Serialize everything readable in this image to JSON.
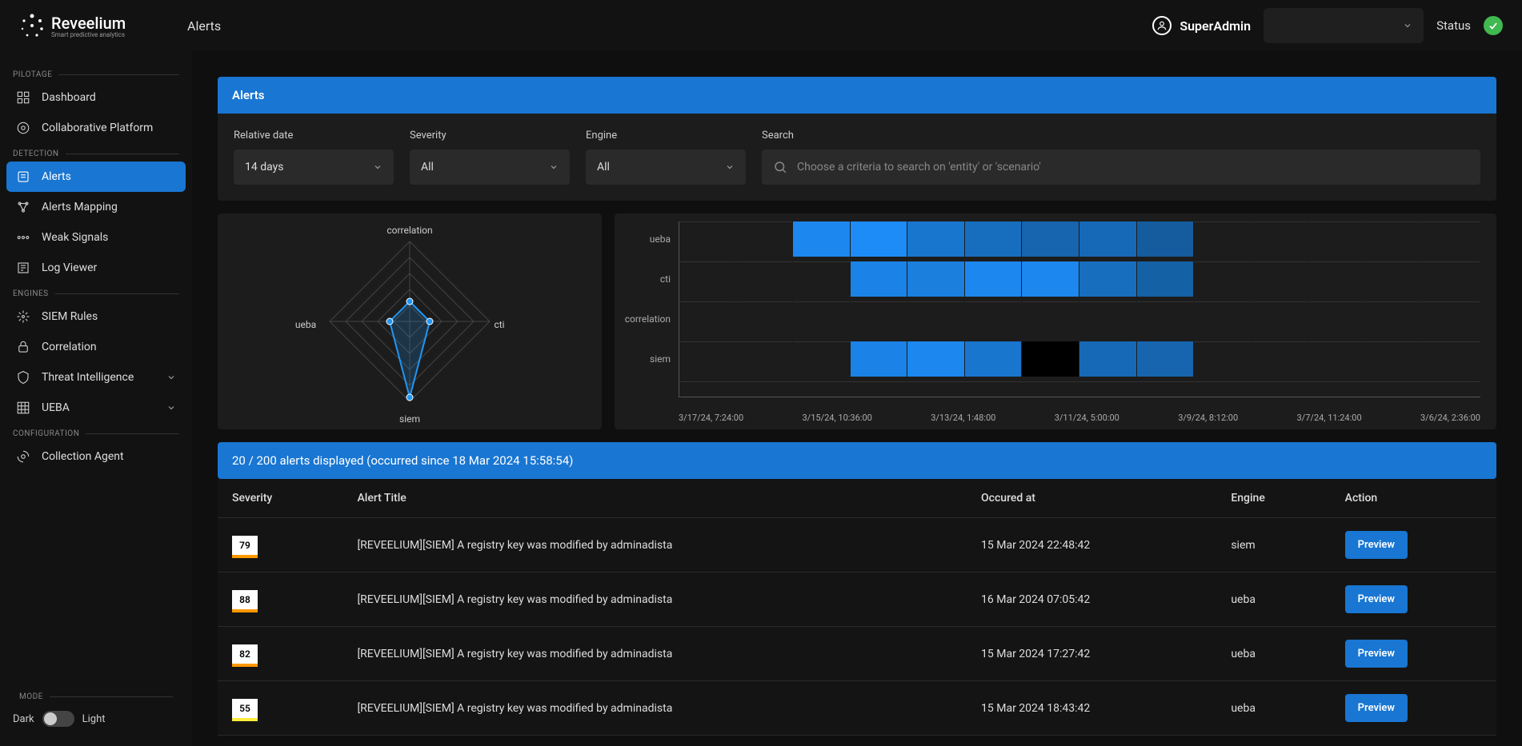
{
  "app": {
    "name": "Reveelium",
    "tagline": "Smart predictive analytics"
  },
  "breadcrumb": "Alerts",
  "user": {
    "name": "SuperAdmin"
  },
  "status_label": "Status",
  "sidebar": {
    "sections": [
      {
        "label": "PILOTAGE",
        "items": [
          {
            "label": "Dashboard",
            "icon": "dashboard"
          },
          {
            "label": "Collaborative Platform",
            "icon": "collab"
          }
        ]
      },
      {
        "label": "DETECTION",
        "items": [
          {
            "label": "Alerts",
            "icon": "alerts",
            "active": true
          },
          {
            "label": "Alerts Mapping",
            "icon": "mapping"
          },
          {
            "label": "Weak Signals",
            "icon": "signals"
          },
          {
            "label": "Log Viewer",
            "icon": "log"
          }
        ]
      },
      {
        "label": "ENGINES",
        "items": [
          {
            "label": "SIEM Rules",
            "icon": "siem"
          },
          {
            "label": "Correlation",
            "icon": "correlation"
          },
          {
            "label": "Threat Intelligence",
            "icon": "threat",
            "expandable": true
          },
          {
            "label": "UEBA",
            "icon": "ueba",
            "expandable": true
          }
        ]
      },
      {
        "label": "CONFIGURATION",
        "items": [
          {
            "label": "Collection Agent",
            "icon": "agent"
          }
        ]
      }
    ],
    "mode": {
      "label": "MODE",
      "dark": "Dark",
      "light": "Light"
    }
  },
  "panels": {
    "alerts_header": "Alerts",
    "filters": {
      "relative_date": {
        "label": "Relative date",
        "value": "14 days"
      },
      "severity": {
        "label": "Severity",
        "value": "All"
      },
      "engine": {
        "label": "Engine",
        "value": "All"
      },
      "search": {
        "label": "Search",
        "placeholder": "Choose a criteria to search on 'entity' or 'scenario'"
      }
    }
  },
  "radar_chart": {
    "type": "radar",
    "axes": [
      "correlation",
      "cti",
      "siem",
      "ueba"
    ],
    "values": [
      0.25,
      0.25,
      0.95,
      0.25
    ],
    "line_color": "#2196f3",
    "point_color": "#2196f3",
    "grid_color": "#444444",
    "background_color": "#1c1c1c",
    "label_fontsize": 12,
    "label_color": "#cccccc"
  },
  "heatmap": {
    "type": "heatmap",
    "y_categories": [
      "ueba",
      "cti",
      "correlation",
      "siem"
    ],
    "x_labels": [
      "3/17/24, 7:24:00",
      "3/15/24, 10:36:00",
      "3/13/24, 1:48:00",
      "3/11/24, 5:00:00",
      "3/9/24, 8:12:00",
      "3/7/24, 11:24:00",
      "3/6/24, 2:36:00"
    ],
    "n_cols": 14,
    "cells": {
      "ueba": [
        null,
        null,
        0.9,
        0.95,
        0.7,
        0.6,
        0.5,
        0.55,
        0.4,
        null,
        null,
        null,
        null,
        null
      ],
      "cti": [
        null,
        null,
        null,
        0.85,
        0.8,
        0.9,
        0.9,
        0.6,
        0.45,
        null,
        null,
        null,
        null,
        null
      ],
      "correlation": [
        null,
        null,
        null,
        null,
        null,
        null,
        null,
        null,
        null,
        null,
        null,
        null,
        null,
        null
      ],
      "siem": [
        null,
        null,
        null,
        0.85,
        0.9,
        0.7,
        0.0,
        0.55,
        0.5,
        null,
        null,
        null,
        null,
        null
      ]
    },
    "color_scale": {
      "min": "#0d3a5c",
      "max": "#1e90ff",
      "none_color": "transparent",
      "zero_color": "#000000"
    },
    "grid_color": "#333333",
    "axis_color": "#555555",
    "label_fontsize": 11,
    "label_color": "#aaaaaa"
  },
  "subheader": "20 / 200 alerts displayed (occurred since 18 Mar 2024 15:58:54)",
  "table": {
    "columns": [
      "Severity",
      "Alert Title",
      "Occured at",
      "Engine",
      "Action"
    ],
    "preview_label": "Preview",
    "severity_colors": {
      "high": "#ff9800",
      "medium": "#ffc107",
      "low": "#ffeb3b"
    },
    "rows": [
      {
        "severity": 79,
        "sev_color": "#ff9800",
        "title": "[REVEELIUM][SIEM] A registry key was modified by adminadista",
        "occured": "15 Mar 2024 22:48:42",
        "engine": "siem"
      },
      {
        "severity": 88,
        "sev_color": "#ff9800",
        "title": "[REVEELIUM][SIEM] A registry key was modified by adminadista",
        "occured": "16 Mar 2024 07:05:42",
        "engine": "ueba"
      },
      {
        "severity": 82,
        "sev_color": "#ff9800",
        "title": "[REVEELIUM][SIEM] A registry key was modified by adminadista",
        "occured": "15 Mar 2024 17:27:42",
        "engine": "ueba"
      },
      {
        "severity": 55,
        "sev_color": "#ffeb3b",
        "title": "[REVEELIUM][SIEM] A registry key was modified by adminadista",
        "occured": "15 Mar 2024 18:43:42",
        "engine": "ueba"
      }
    ]
  }
}
